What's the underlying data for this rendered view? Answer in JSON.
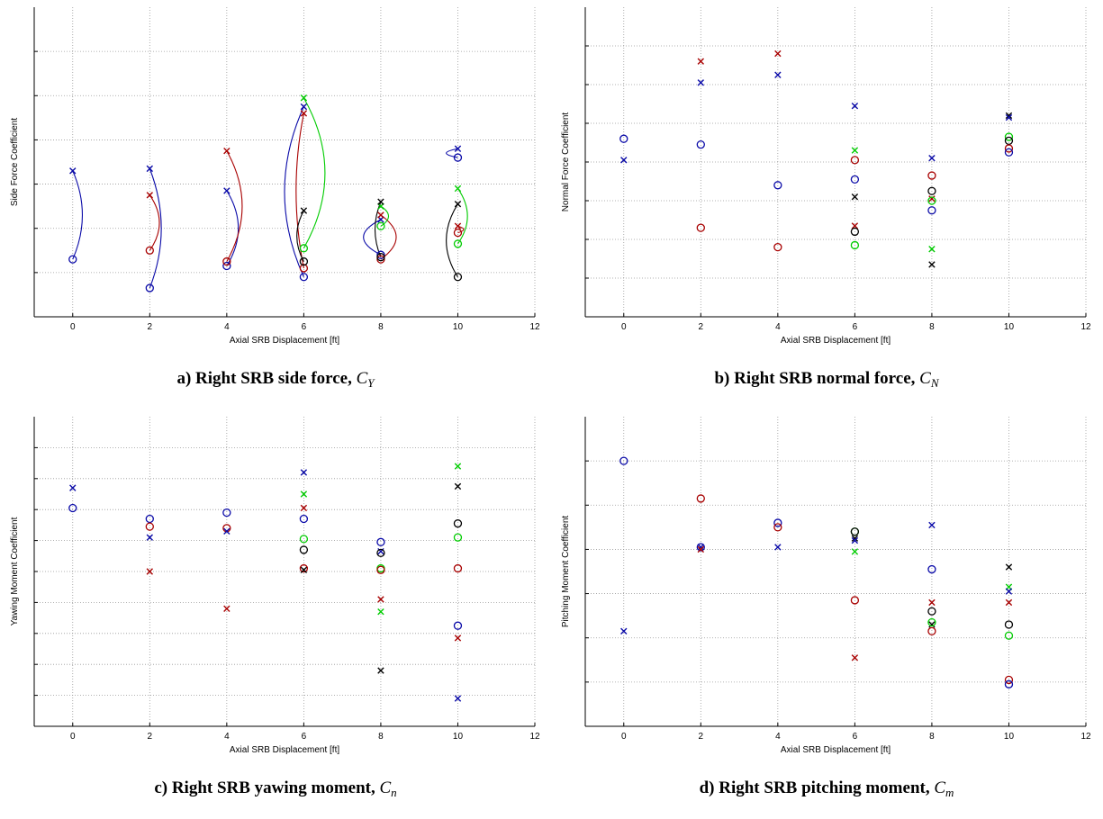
{
  "colors": {
    "blue": "#0a0aa8",
    "red": "#a80000",
    "green": "#00cc00",
    "black": "#000000"
  },
  "chart_data": [
    {
      "type": "scatter",
      "caption": {
        "prefix": "a)",
        "text": "Right SRB side force,",
        "symbol": "C",
        "subscript": "Y"
      },
      "xlabel": "Axial SRB Displacement [ft]",
      "ylabel": "Side Force Coefficient",
      "xlim": [
        -1,
        12
      ],
      "xticks": [
        0,
        2,
        4,
        6,
        8,
        10,
        12
      ],
      "ylim": [
        0,
        7
      ],
      "grid_y": [
        1,
        2,
        3,
        4,
        5,
        6
      ],
      "y_tick_labels": false,
      "grid": true,
      "points": [
        {
          "x": 0,
          "y": 3.3,
          "m": "x",
          "c": "blue"
        },
        {
          "x": 0,
          "y": 1.3,
          "m": "o",
          "c": "blue"
        },
        {
          "x": 2,
          "y": 3.35,
          "m": "x",
          "c": "blue"
        },
        {
          "x": 2,
          "y": 0.65,
          "m": "o",
          "c": "blue"
        },
        {
          "x": 2,
          "y": 2.75,
          "m": "x",
          "c": "red"
        },
        {
          "x": 2,
          "y": 1.5,
          "m": "o",
          "c": "red"
        },
        {
          "x": 4,
          "y": 2.85,
          "m": "x",
          "c": "blue"
        },
        {
          "x": 4,
          "y": 1.15,
          "m": "o",
          "c": "blue"
        },
        {
          "x": 4,
          "y": 3.75,
          "m": "x",
          "c": "red"
        },
        {
          "x": 4,
          "y": 1.25,
          "m": "o",
          "c": "red"
        },
        {
          "x": 6,
          "y": 4.75,
          "m": "x",
          "c": "blue"
        },
        {
          "x": 6,
          "y": 0.9,
          "m": "o",
          "c": "blue"
        },
        {
          "x": 6,
          "y": 4.6,
          "m": "x",
          "c": "red"
        },
        {
          "x": 6,
          "y": 1.1,
          "m": "o",
          "c": "red"
        },
        {
          "x": 6,
          "y": 4.95,
          "m": "x",
          "c": "green"
        },
        {
          "x": 6,
          "y": 1.55,
          "m": "o",
          "c": "green"
        },
        {
          "x": 6,
          "y": 2.4,
          "m": "x",
          "c": "black"
        },
        {
          "x": 6,
          "y": 1.25,
          "m": "o",
          "c": "black"
        },
        {
          "x": 8,
          "y": 2.2,
          "m": "x",
          "c": "blue"
        },
        {
          "x": 8,
          "y": 1.4,
          "m": "o",
          "c": "blue"
        },
        {
          "x": 8,
          "y": 2.3,
          "m": "x",
          "c": "red"
        },
        {
          "x": 8,
          "y": 1.3,
          "m": "o",
          "c": "red"
        },
        {
          "x": 8,
          "y": 2.5,
          "m": "x",
          "c": "green"
        },
        {
          "x": 8,
          "y": 2.05,
          "m": "o",
          "c": "green"
        },
        {
          "x": 8,
          "y": 2.6,
          "m": "x",
          "c": "black"
        },
        {
          "x": 8,
          "y": 1.35,
          "m": "o",
          "c": "black"
        },
        {
          "x": 10,
          "y": 3.8,
          "m": "x",
          "c": "blue"
        },
        {
          "x": 10,
          "y": 3.6,
          "m": "o",
          "c": "blue"
        },
        {
          "x": 10,
          "y": 2.05,
          "m": "x",
          "c": "red"
        },
        {
          "x": 10,
          "y": 1.9,
          "m": "o",
          "c": "red"
        },
        {
          "x": 10,
          "y": 2.9,
          "m": "x",
          "c": "green"
        },
        {
          "x": 10,
          "y": 1.65,
          "m": "o",
          "c": "green"
        },
        {
          "x": 10,
          "y": 2.55,
          "m": "x",
          "c": "black"
        },
        {
          "x": 10,
          "y": 0.9,
          "m": "o",
          "c": "black"
        }
      ],
      "connectors": [
        {
          "x": 0,
          "y1": 3.3,
          "y2": 1.3,
          "bulge": 0.25,
          "c": "blue"
        },
        {
          "x": 2,
          "y1": 3.35,
          "y2": 0.65,
          "bulge": 0.3,
          "c": "blue"
        },
        {
          "x": 2,
          "y1": 2.75,
          "y2": 1.5,
          "bulge": 0.25,
          "c": "red"
        },
        {
          "x": 4,
          "y1": 2.85,
          "y2": 1.15,
          "bulge": 0.3,
          "c": "blue"
        },
        {
          "x": 4,
          "y1": 3.75,
          "y2": 1.25,
          "bulge": 0.4,
          "c": "red"
        },
        {
          "x": 6,
          "y1": 4.75,
          "y2": 0.9,
          "bulge": -0.5,
          "c": "blue"
        },
        {
          "x": 6,
          "y1": 4.6,
          "y2": 1.1,
          "bulge": -0.2,
          "c": "red"
        },
        {
          "x": 6,
          "y1": 4.95,
          "y2": 1.55,
          "bulge": 0.55,
          "c": "green"
        },
        {
          "x": 6,
          "y1": 2.4,
          "y2": 1.25,
          "bulge": -0.18,
          "c": "black"
        },
        {
          "x": 8,
          "y1": 2.2,
          "y2": 1.4,
          "bulge": -0.45,
          "c": "blue"
        },
        {
          "x": 8,
          "y1": 2.3,
          "y2": 1.3,
          "bulge": 0.4,
          "c": "red"
        },
        {
          "x": 8,
          "y1": 2.5,
          "y2": 2.05,
          "bulge": 0.2,
          "c": "green"
        },
        {
          "x": 8,
          "y1": 2.6,
          "y2": 1.35,
          "bulge": -0.15,
          "c": "black"
        },
        {
          "x": 10,
          "y1": 3.8,
          "y2": 3.6,
          "bulge": -0.3,
          "c": "blue"
        },
        {
          "x": 10,
          "y1": 2.05,
          "y2": 1.9,
          "bulge": 0.15,
          "c": "red"
        },
        {
          "x": 10,
          "y1": 2.9,
          "y2": 1.65,
          "bulge": 0.25,
          "c": "green"
        },
        {
          "x": 10,
          "y1": 2.55,
          "y2": 0.9,
          "bulge": -0.3,
          "c": "black"
        }
      ]
    },
    {
      "type": "scatter",
      "caption": {
        "prefix": "b)",
        "text": "Right SRB normal force,",
        "symbol": "C",
        "subscript": "N"
      },
      "xlabel": "Axial SRB Displacement [ft]",
      "ylabel": "Normal Force Coefficient",
      "xlim": [
        -1,
        12
      ],
      "xticks": [
        0,
        2,
        4,
        6,
        8,
        10,
        12
      ],
      "ylim": [
        0,
        8
      ],
      "grid_y": [
        1,
        2,
        3,
        4,
        5,
        6,
        7
      ],
      "y_tick_labels": false,
      "grid": true,
      "points": [
        {
          "x": 0,
          "y": 4.6,
          "m": "o",
          "c": "blue"
        },
        {
          "x": 0,
          "y": 4.05,
          "m": "x",
          "c": "blue"
        },
        {
          "x": 2,
          "y": 6.6,
          "m": "x",
          "c": "red"
        },
        {
          "x": 2,
          "y": 6.05,
          "m": "x",
          "c": "blue"
        },
        {
          "x": 2,
          "y": 4.45,
          "m": "o",
          "c": "blue"
        },
        {
          "x": 2,
          "y": 2.3,
          "m": "o",
          "c": "red"
        },
        {
          "x": 4,
          "y": 6.8,
          "m": "x",
          "c": "red"
        },
        {
          "x": 4,
          "y": 6.25,
          "m": "x",
          "c": "blue"
        },
        {
          "x": 4,
          "y": 3.4,
          "m": "o",
          "c": "blue"
        },
        {
          "x": 4,
          "y": 1.8,
          "m": "o",
          "c": "red"
        },
        {
          "x": 6,
          "y": 5.45,
          "m": "x",
          "c": "blue"
        },
        {
          "x": 6,
          "y": 4.3,
          "m": "x",
          "c": "green"
        },
        {
          "x": 6,
          "y": 4.05,
          "m": "o",
          "c": "red"
        },
        {
          "x": 6,
          "y": 3.55,
          "m": "o",
          "c": "blue"
        },
        {
          "x": 6,
          "y": 3.1,
          "m": "x",
          "c": "black"
        },
        {
          "x": 6,
          "y": 2.35,
          "m": "x",
          "c": "red"
        },
        {
          "x": 6,
          "y": 2.2,
          "m": "o",
          "c": "black"
        },
        {
          "x": 6,
          "y": 1.85,
          "m": "o",
          "c": "green"
        },
        {
          "x": 8,
          "y": 4.1,
          "m": "x",
          "c": "blue"
        },
        {
          "x": 8,
          "y": 3.65,
          "m": "o",
          "c": "red"
        },
        {
          "x": 8,
          "y": 3.25,
          "m": "o",
          "c": "black"
        },
        {
          "x": 8,
          "y": 3.05,
          "m": "x",
          "c": "red"
        },
        {
          "x": 8,
          "y": 3.0,
          "m": "o",
          "c": "green"
        },
        {
          "x": 8,
          "y": 2.75,
          "m": "o",
          "c": "blue"
        },
        {
          "x": 8,
          "y": 1.75,
          "m": "x",
          "c": "green"
        },
        {
          "x": 8,
          "y": 1.35,
          "m": "x",
          "c": "black"
        },
        {
          "x": 10,
          "y": 5.2,
          "m": "x",
          "c": "black"
        },
        {
          "x": 10,
          "y": 5.15,
          "m": "x",
          "c": "blue"
        },
        {
          "x": 10,
          "y": 4.65,
          "m": "o",
          "c": "green"
        },
        {
          "x": 10,
          "y": 4.55,
          "m": "o",
          "c": "black"
        },
        {
          "x": 10,
          "y": 4.35,
          "m": "o",
          "c": "red"
        },
        {
          "x": 10,
          "y": 4.25,
          "m": "o",
          "c": "blue"
        }
      ]
    },
    {
      "type": "scatter",
      "caption": {
        "prefix": "c)",
        "text": "Right SRB yawing moment,",
        "symbol": "C",
        "subscript": "n"
      },
      "xlabel": "Axial SRB Displacement [ft]",
      "ylabel": "Yawing Moment Coefficient",
      "xlim": [
        -1,
        12
      ],
      "xticks": [
        0,
        2,
        4,
        6,
        8,
        10,
        12
      ],
      "ylim": [
        0,
        10
      ],
      "grid_y": [
        1,
        2,
        3,
        4,
        5,
        6,
        7,
        8,
        9
      ],
      "y_tick_labels": false,
      "grid": true,
      "points": [
        {
          "x": 0,
          "y": 7.7,
          "m": "x",
          "c": "blue"
        },
        {
          "x": 0,
          "y": 7.05,
          "m": "o",
          "c": "blue"
        },
        {
          "x": 2,
          "y": 6.7,
          "m": "o",
          "c": "blue"
        },
        {
          "x": 2,
          "y": 6.45,
          "m": "o",
          "c": "red"
        },
        {
          "x": 2,
          "y": 6.1,
          "m": "x",
          "c": "blue"
        },
        {
          "x": 2,
          "y": 5.0,
          "m": "x",
          "c": "red"
        },
        {
          "x": 4,
          "y": 6.9,
          "m": "o",
          "c": "blue"
        },
        {
          "x": 4,
          "y": 6.4,
          "m": "o",
          "c": "red"
        },
        {
          "x": 4,
          "y": 6.3,
          "m": "x",
          "c": "blue"
        },
        {
          "x": 4,
          "y": 3.8,
          "m": "x",
          "c": "red"
        },
        {
          "x": 6,
          "y": 8.2,
          "m": "x",
          "c": "blue"
        },
        {
          "x": 6,
          "y": 7.5,
          "m": "x",
          "c": "green"
        },
        {
          "x": 6,
          "y": 7.05,
          "m": "x",
          "c": "red"
        },
        {
          "x": 6,
          "y": 6.7,
          "m": "o",
          "c": "blue"
        },
        {
          "x": 6,
          "y": 6.05,
          "m": "o",
          "c": "green"
        },
        {
          "x": 6,
          "y": 5.7,
          "m": "o",
          "c": "black"
        },
        {
          "x": 6,
          "y": 5.1,
          "m": "o",
          "c": "red"
        },
        {
          "x": 6,
          "y": 5.05,
          "m": "x",
          "c": "black"
        },
        {
          "x": 8,
          "y": 5.95,
          "m": "o",
          "c": "blue"
        },
        {
          "x": 8,
          "y": 5.65,
          "m": "x",
          "c": "blue"
        },
        {
          "x": 8,
          "y": 5.6,
          "m": "o",
          "c": "black"
        },
        {
          "x": 8,
          "y": 5.1,
          "m": "o",
          "c": "green"
        },
        {
          "x": 8,
          "y": 5.05,
          "m": "o",
          "c": "red"
        },
        {
          "x": 8,
          "y": 4.1,
          "m": "x",
          "c": "red"
        },
        {
          "x": 8,
          "y": 3.7,
          "m": "x",
          "c": "green"
        },
        {
          "x": 8,
          "y": 1.8,
          "m": "x",
          "c": "black"
        },
        {
          "x": 10,
          "y": 8.4,
          "m": "x",
          "c": "green"
        },
        {
          "x": 10,
          "y": 7.75,
          "m": "x",
          "c": "black"
        },
        {
          "x": 10,
          "y": 6.55,
          "m": "o",
          "c": "black"
        },
        {
          "x": 10,
          "y": 6.1,
          "m": "o",
          "c": "green"
        },
        {
          "x": 10,
          "y": 5.1,
          "m": "o",
          "c": "red"
        },
        {
          "x": 10,
          "y": 3.25,
          "m": "o",
          "c": "blue"
        },
        {
          "x": 10,
          "y": 2.85,
          "m": "x",
          "c": "red"
        },
        {
          "x": 10,
          "y": 0.9,
          "m": "x",
          "c": "blue"
        }
      ]
    },
    {
      "type": "scatter",
      "caption": {
        "prefix": "d)",
        "text": "Right SRB pitching moment,",
        "symbol": "C",
        "subscript": "m"
      },
      "xlabel": "Axial SRB Displacement [ft]",
      "ylabel": "Pitching Moment Coefficient",
      "xlim": [
        -1,
        12
      ],
      "xticks": [
        0,
        2,
        4,
        6,
        8,
        10,
        12
      ],
      "ylim": [
        0,
        7
      ],
      "grid_y": [
        1,
        2,
        3,
        4,
        5,
        6
      ],
      "y_tick_labels": false,
      "grid": true,
      "points": [
        {
          "x": 0,
          "y": 6.0,
          "m": "o",
          "c": "blue"
        },
        {
          "x": 0,
          "y": 2.15,
          "m": "x",
          "c": "blue"
        },
        {
          "x": 2,
          "y": 5.15,
          "m": "o",
          "c": "red"
        },
        {
          "x": 2,
          "y": 4.05,
          "m": "o",
          "c": "blue"
        },
        {
          "x": 2,
          "y": 4.05,
          "m": "x",
          "c": "blue"
        },
        {
          "x": 2,
          "y": 4.0,
          "m": "x",
          "c": "red"
        },
        {
          "x": 4,
          "y": 4.6,
          "m": "o",
          "c": "blue"
        },
        {
          "x": 4,
          "y": 4.5,
          "m": "o",
          "c": "red"
        },
        {
          "x": 4,
          "y": 4.05,
          "m": "x",
          "c": "blue"
        },
        {
          "x": 6,
          "y": 4.4,
          "m": "o",
          "c": "green"
        },
        {
          "x": 6,
          "y": 4.4,
          "m": "o",
          "c": "black"
        },
        {
          "x": 6,
          "y": 4.25,
          "m": "x",
          "c": "black"
        },
        {
          "x": 6,
          "y": 4.2,
          "m": "x",
          "c": "blue"
        },
        {
          "x": 6,
          "y": 3.95,
          "m": "x",
          "c": "green"
        },
        {
          "x": 6,
          "y": 2.85,
          "m": "o",
          "c": "red"
        },
        {
          "x": 6,
          "y": 1.55,
          "m": "x",
          "c": "red"
        },
        {
          "x": 8,
          "y": 4.55,
          "m": "x",
          "c": "blue"
        },
        {
          "x": 8,
          "y": 3.55,
          "m": "o",
          "c": "blue"
        },
        {
          "x": 8,
          "y": 2.8,
          "m": "x",
          "c": "red"
        },
        {
          "x": 8,
          "y": 2.6,
          "m": "o",
          "c": "black"
        },
        {
          "x": 8,
          "y": 2.3,
          "m": "x",
          "c": "black"
        },
        {
          "x": 8,
          "y": 2.35,
          "m": "o",
          "c": "green"
        },
        {
          "x": 8,
          "y": 2.15,
          "m": "o",
          "c": "red"
        },
        {
          "x": 10,
          "y": 3.6,
          "m": "x",
          "c": "black"
        },
        {
          "x": 10,
          "y": 3.15,
          "m": "x",
          "c": "green"
        },
        {
          "x": 10,
          "y": 3.05,
          "m": "x",
          "c": "blue"
        },
        {
          "x": 10,
          "y": 2.8,
          "m": "x",
          "c": "red"
        },
        {
          "x": 10,
          "y": 2.3,
          "m": "o",
          "c": "black"
        },
        {
          "x": 10,
          "y": 2.05,
          "m": "o",
          "c": "green"
        },
        {
          "x": 10,
          "y": 1.05,
          "m": "o",
          "c": "red"
        },
        {
          "x": 10,
          "y": 0.95,
          "m": "o",
          "c": "blue"
        }
      ]
    }
  ]
}
